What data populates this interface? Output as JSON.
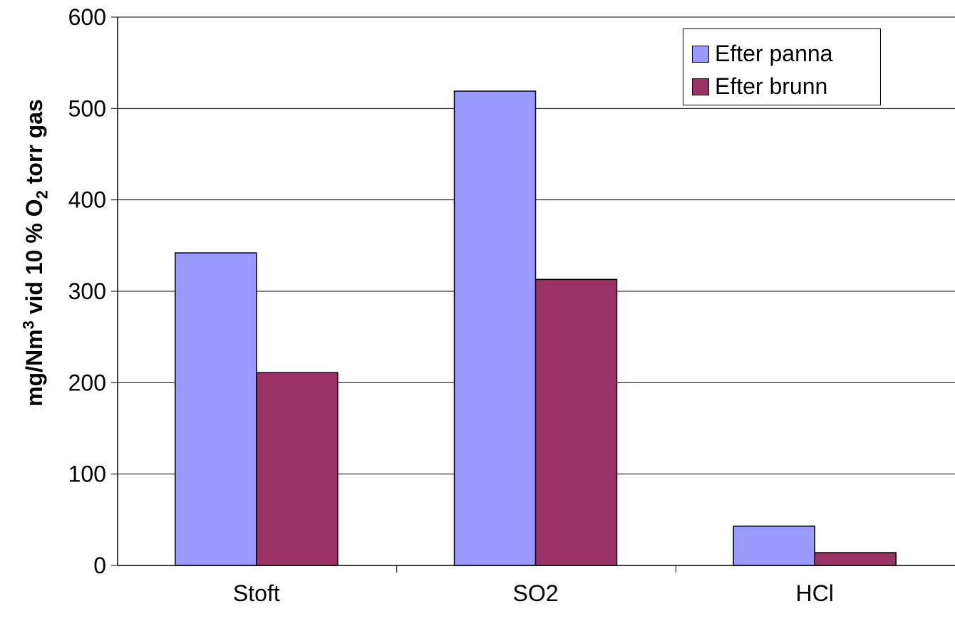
{
  "chart_data": {
    "type": "bar",
    "categories": [
      "Stoft",
      "SO2",
      "HCl"
    ],
    "series": [
      {
        "name": "Efter panna",
        "values": [
          342,
          519,
          43
        ],
        "color": "#9999FF"
      },
      {
        "name": "Efter brunn",
        "values": [
          211,
          313,
          14
        ],
        "color": "#993366"
      }
    ],
    "title": "",
    "xlabel": "",
    "ylabel": {
      "prefix": "mg/Nm",
      "sup": "3",
      "mid": "vid 10 % O",
      "sub": "2",
      "suffix": " torr gas"
    },
    "ylim": [
      0,
      600
    ],
    "yticks": [
      "0",
      "100",
      "200",
      "300",
      "400",
      "500",
      "600"
    ],
    "grid": true,
    "legend_position": "top-right"
  }
}
